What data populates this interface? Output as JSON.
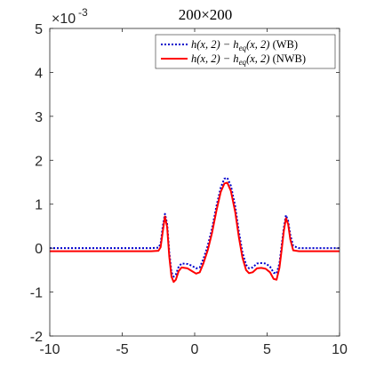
{
  "chart_data": {
    "type": "line",
    "title": "200×200",
    "xlabel": "",
    "ylabel": "",
    "xlim": [
      -10,
      10
    ],
    "ylim": [
      -2,
      5
    ],
    "y_multiplier_label": {
      "base": "×10",
      "exponent": "-3"
    },
    "x_ticks": [
      -10,
      -5,
      0,
      5,
      10
    ],
    "y_ticks": [
      -2,
      -1,
      0,
      1,
      2,
      3,
      4,
      5
    ],
    "grid": false,
    "legend_position": "top-right",
    "series": [
      {
        "name": "h(x,2) − h_eq(x,2) (WB)",
        "legend": {
          "main": "h(x, 2) − h",
          "sub": "eq",
          "rest": "(x, 2)",
          "tag": "(WB)"
        },
        "color": "#0000cc",
        "style": "dotted",
        "points": [
          [
            -10,
            0.0
          ],
          [
            -3.0,
            0.0
          ],
          [
            -2.5,
            0.01
          ],
          [
            -2.35,
            0.1
          ],
          [
            -2.2,
            0.5
          ],
          [
            -2.05,
            0.78
          ],
          [
            -1.9,
            0.55
          ],
          [
            -1.75,
            -0.1
          ],
          [
            -1.6,
            -0.55
          ],
          [
            -1.45,
            -0.65
          ],
          [
            -1.3,
            -0.6
          ],
          [
            -1.1,
            -0.42
          ],
          [
            -0.9,
            -0.35
          ],
          [
            -0.5,
            -0.36
          ],
          [
            -0.2,
            -0.4
          ],
          [
            0.1,
            -0.46
          ],
          [
            0.35,
            -0.44
          ],
          [
            0.6,
            -0.25
          ],
          [
            0.9,
            0.05
          ],
          [
            1.2,
            0.45
          ],
          [
            1.5,
            0.95
          ],
          [
            1.8,
            1.38
          ],
          [
            2.05,
            1.58
          ],
          [
            2.25,
            1.6
          ],
          [
            2.5,
            1.42
          ],
          [
            2.8,
            0.95
          ],
          [
            3.05,
            0.38
          ],
          [
            3.3,
            -0.1
          ],
          [
            3.55,
            -0.38
          ],
          [
            3.75,
            -0.46
          ],
          [
            4.0,
            -0.44
          ],
          [
            4.3,
            -0.35
          ],
          [
            4.6,
            -0.34
          ],
          [
            4.9,
            -0.35
          ],
          [
            5.2,
            -0.42
          ],
          [
            5.45,
            -0.56
          ],
          [
            5.65,
            -0.58
          ],
          [
            5.85,
            -0.35
          ],
          [
            6.0,
            0.05
          ],
          [
            6.15,
            0.45
          ],
          [
            6.3,
            0.75
          ],
          [
            6.45,
            0.62
          ],
          [
            6.6,
            0.3
          ],
          [
            6.8,
            0.05
          ],
          [
            7.2,
            0.0
          ],
          [
            10,
            0.0
          ]
        ]
      },
      {
        "name": "h(x,2) − h_eq(x,2) (NWB)",
        "legend": {
          "main": "h(x, 2) − h",
          "sub": "eq",
          "rest": "(x, 2)",
          "tag": "(NWB)"
        },
        "color": "#ff0000",
        "style": "solid",
        "points": [
          [
            -10,
            -0.07
          ],
          [
            -3.0,
            -0.07
          ],
          [
            -2.5,
            -0.06
          ],
          [
            -2.35,
            0.02
          ],
          [
            -2.2,
            0.38
          ],
          [
            -2.05,
            0.72
          ],
          [
            -1.9,
            0.48
          ],
          [
            -1.75,
            -0.2
          ],
          [
            -1.6,
            -0.65
          ],
          [
            -1.45,
            -0.77
          ],
          [
            -1.3,
            -0.72
          ],
          [
            -1.1,
            -0.52
          ],
          [
            -0.9,
            -0.44
          ],
          [
            -0.5,
            -0.46
          ],
          [
            -0.2,
            -0.52
          ],
          [
            0.1,
            -0.58
          ],
          [
            0.35,
            -0.55
          ],
          [
            0.6,
            -0.35
          ],
          [
            0.9,
            -0.05
          ],
          [
            1.2,
            0.35
          ],
          [
            1.5,
            0.85
          ],
          [
            1.8,
            1.28
          ],
          [
            2.05,
            1.47
          ],
          [
            2.25,
            1.49
          ],
          [
            2.5,
            1.3
          ],
          [
            2.8,
            0.82
          ],
          [
            3.05,
            0.25
          ],
          [
            3.3,
            -0.22
          ],
          [
            3.55,
            -0.5
          ],
          [
            3.75,
            -0.57
          ],
          [
            4.0,
            -0.55
          ],
          [
            4.3,
            -0.46
          ],
          [
            4.6,
            -0.45
          ],
          [
            4.9,
            -0.47
          ],
          [
            5.2,
            -0.55
          ],
          [
            5.45,
            -0.7
          ],
          [
            5.65,
            -0.72
          ],
          [
            5.85,
            -0.45
          ],
          [
            6.0,
            -0.05
          ],
          [
            6.15,
            0.38
          ],
          [
            6.3,
            0.68
          ],
          [
            6.45,
            0.55
          ],
          [
            6.6,
            0.2
          ],
          [
            6.8,
            -0.05
          ],
          [
            7.2,
            -0.07
          ],
          [
            10,
            -0.07
          ]
        ]
      }
    ]
  }
}
